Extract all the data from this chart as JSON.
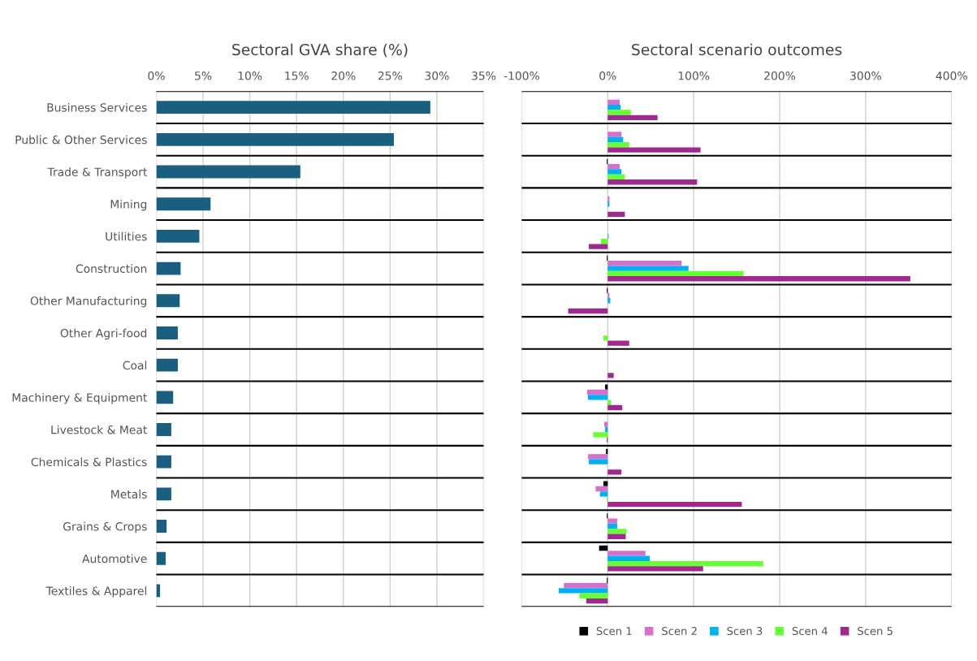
{
  "chart_data": [
    {
      "type": "bar",
      "orientation": "horizontal",
      "title": "Sectoral GVA share (%)",
      "categories": [
        "Business Services",
        "Public & Other Services",
        "Trade & Transport",
        "Mining",
        "Utilities",
        "Construction",
        "Other Manufacturing",
        "Other Agri-food",
        "Coal",
        "Machinery & Equipment",
        "Livestock & Meat",
        "Chemicals & Plastics",
        "Metals",
        "Grains & Crops",
        "Automotive",
        "Textiles & Apparel"
      ],
      "values": [
        29.3,
        25.4,
        15.4,
        5.8,
        4.6,
        2.6,
        2.5,
        2.3,
        2.3,
        1.8,
        1.6,
        1.6,
        1.6,
        1.1,
        1.0,
        0.4
      ],
      "color": "#1a5e80",
      "xlim": [
        0,
        35
      ],
      "xticks": [
        {
          "value": 0,
          "label": "0%"
        },
        {
          "value": 5,
          "label": "5%"
        },
        {
          "value": 10,
          "label": "10%"
        },
        {
          "value": 15,
          "label": "15%"
        },
        {
          "value": 20,
          "label": "20%"
        },
        {
          "value": 25,
          "label": "25%"
        },
        {
          "value": 30,
          "label": "30%"
        },
        {
          "value": 35,
          "label": "35%"
        }
      ],
      "grid": "x",
      "legend": false
    },
    {
      "type": "bar",
      "orientation": "horizontal",
      "title": "Sectoral scenario outcomes",
      "categories": [
        null,
        null,
        null,
        null,
        null,
        null,
        null,
        null,
        null,
        null,
        null,
        null,
        null,
        null,
        null,
        null
      ],
      "series": [
        {
          "name": "Scen 1",
          "color": "#000000",
          "values": [
            0,
            0,
            -1,
            0,
            0,
            -1,
            -1,
            0,
            0,
            -3,
            0,
            -2,
            -5,
            -1,
            -10,
            -1
          ]
        },
        {
          "name": "Scen 2",
          "color": "#d670cd",
          "values": [
            14,
            16,
            14,
            2,
            0,
            86,
            2,
            0,
            0,
            -24,
            -4,
            -23,
            -14,
            11,
            44,
            -51
          ]
        },
        {
          "name": "Scen 3",
          "color": "#00b0f0",
          "values": [
            15,
            18,
            16,
            2,
            1,
            94,
            3,
            0,
            0,
            -23,
            -3,
            -22,
            -9,
            11,
            49,
            -57
          ]
        },
        {
          "name": "Scen 4",
          "color": "#66ff33",
          "values": [
            27,
            25,
            20,
            0,
            -8,
            158,
            0,
            -5,
            0,
            4,
            -17,
            0,
            -1,
            22,
            181,
            -33
          ]
        },
        {
          "name": "Scen 5",
          "color": "#a0298f",
          "values": [
            58,
            108,
            104,
            20,
            -22,
            352,
            -46,
            25,
            7,
            17,
            -1,
            16,
            156,
            21,
            111,
            -25
          ]
        }
      ],
      "xlim": [
        -100,
        400
      ],
      "xticks": [
        {
          "value": -100,
          "label": "-100%"
        },
        {
          "value": 0,
          "label": "0%"
        },
        {
          "value": 100,
          "label": "100%"
        },
        {
          "value": 200,
          "label": "200%"
        },
        {
          "value": 300,
          "label": "300%"
        },
        {
          "value": 400,
          "label": "400%"
        }
      ],
      "tick_labels": "x",
      "grid": "x",
      "legend": "bottom"
    }
  ]
}
